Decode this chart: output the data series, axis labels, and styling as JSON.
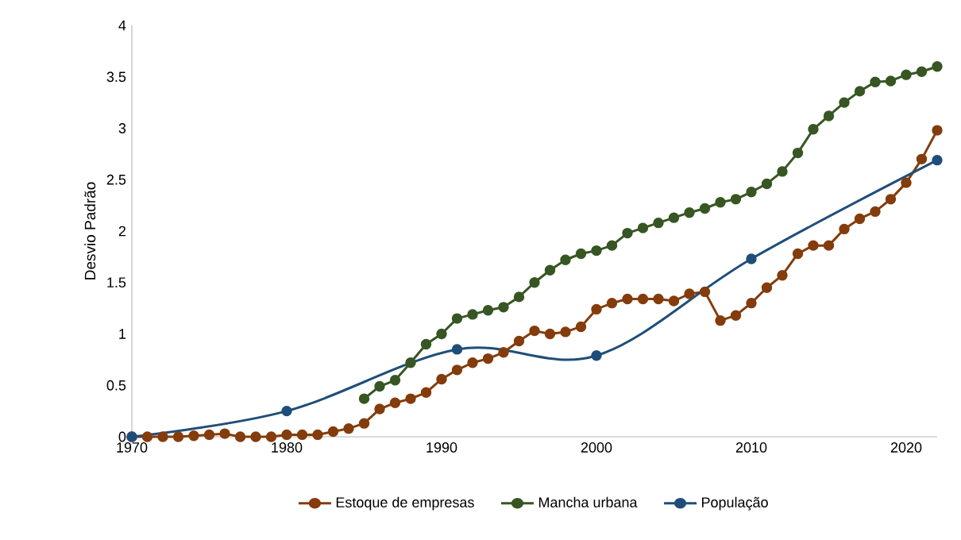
{
  "chart_data": {
    "type": "line",
    "ylabel": "Desvio Padrão",
    "x": [
      1970,
      1971,
      1972,
      1973,
      1974,
      1975,
      1976,
      1977,
      1978,
      1979,
      1980,
      1981,
      1982,
      1983,
      1984,
      1985,
      1986,
      1987,
      1988,
      1989,
      1990,
      1991,
      1992,
      1993,
      1994,
      1995,
      1996,
      1997,
      1998,
      1999,
      2000,
      2001,
      2002,
      2003,
      2004,
      2005,
      2006,
      2007,
      2008,
      2009,
      2010,
      2011,
      2012,
      2013,
      2014,
      2015,
      2016,
      2017,
      2018,
      2019,
      2020,
      2021,
      2022
    ],
    "series": [
      {
        "name": "Estoque de empresas",
        "color": "#843c0c",
        "values": [
          0,
          0,
          0,
          0,
          0.01,
          0.02,
          0.03,
          0,
          0,
          0,
          0.02,
          0.02,
          0.02,
          0.05,
          0.08,
          0.13,
          0.27,
          0.33,
          0.37,
          0.43,
          0.56,
          0.65,
          0.72,
          0.76,
          0.82,
          0.93,
          1.03,
          1.0,
          1.02,
          1.07,
          1.24,
          1.3,
          1.34,
          1.34,
          1.34,
          1.32,
          1.39,
          1.41,
          1.13,
          1.18,
          1.3,
          1.45,
          1.57,
          1.78,
          1.86,
          1.86,
          2.02,
          2.12,
          2.19,
          2.31,
          2.47,
          2.7,
          2.98
        ]
      },
      {
        "name": "Mancha urbana",
        "color": "#375623",
        "x": [
          1985,
          1986,
          1987,
          1988,
          1989,
          1990,
          1991,
          1992,
          1993,
          1994,
          1995,
          1996,
          1997,
          1998,
          1999,
          2000,
          2001,
          2002,
          2003,
          2004,
          2005,
          2006,
          2007,
          2008,
          2009,
          2010,
          2011,
          2012,
          2013,
          2014,
          2015,
          2016,
          2017,
          2018,
          2019,
          2020,
          2021,
          2022
        ],
        "values": [
          0.37,
          0.49,
          0.55,
          0.72,
          0.9,
          1.0,
          1.15,
          1.19,
          1.23,
          1.26,
          1.36,
          1.5,
          1.62,
          1.72,
          1.78,
          1.81,
          1.86,
          1.98,
          2.03,
          2.08,
          2.13,
          2.18,
          2.22,
          2.28,
          2.31,
          2.38,
          2.46,
          2.58,
          2.76,
          2.99,
          3.12,
          3.25,
          3.36,
          3.45,
          3.46,
          3.52,
          3.55,
          3.6
        ]
      },
      {
        "name": "População",
        "color": "#1f4e79",
        "x": [
          1970,
          1980,
          1991,
          2000,
          2010,
          2022
        ],
        "values": [
          0,
          0.25,
          0.85,
          0.79,
          1.73,
          2.69
        ]
      }
    ],
    "xlim": [
      1970,
      2022
    ],
    "ylim": [
      0,
      4
    ],
    "xticks": [
      1970,
      1980,
      1990,
      2000,
      2010,
      2020
    ],
    "yticks": [
      0,
      0.5,
      1,
      1.5,
      2,
      2.5,
      3,
      3.5,
      4
    ],
    "legend": "bottom",
    "marker": "circle",
    "grid": false
  }
}
